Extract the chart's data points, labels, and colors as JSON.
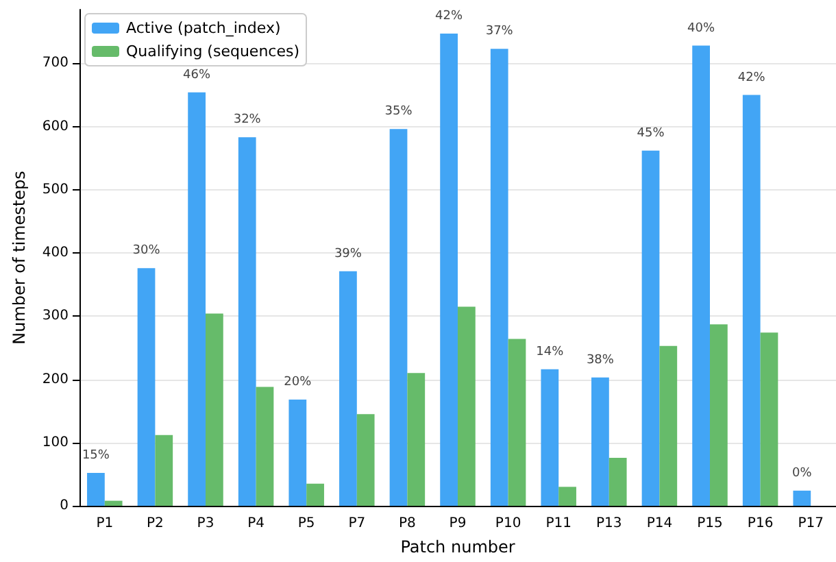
{
  "chart_data": {
    "type": "bar",
    "xlabel": "Patch number",
    "ylabel": "Number of timesteps",
    "categories": [
      "P1",
      "P2",
      "P3",
      "P4",
      "P5",
      "P7",
      "P8",
      "P9",
      "P10",
      "P11",
      "P13",
      "P14",
      "P15",
      "P16",
      "P17"
    ],
    "series": [
      {
        "name": "Active (patch_index)",
        "color": "#42a5f5",
        "values": [
          52,
          376,
          654,
          583,
          168,
          371,
          596,
          747,
          723,
          216,
          203,
          562,
          728,
          650,
          24
        ]
      },
      {
        "name": "Qualifying (sequences)",
        "color": "#66bb6a",
        "values": [
          8,
          112,
          304,
          188,
          35,
          145,
          210,
          315,
          264,
          30,
          76,
          253,
          287,
          274,
          0
        ]
      }
    ],
    "annotations": [
      {
        "text": "15%",
        "x": "P1",
        "y": 52
      },
      {
        "text": "30%",
        "x": "P2",
        "y": 376
      },
      {
        "text": "46%",
        "x": "P3",
        "y": 654
      },
      {
        "text": "32%",
        "x": "P4",
        "y": 583
      },
      {
        "text": "20%",
        "x": "P5",
        "y": 168
      },
      {
        "text": "39%",
        "x": "P7",
        "y": 371
      },
      {
        "text": "35%",
        "x": "P8",
        "y": 596
      },
      {
        "text": "42%",
        "x": "P9",
        "y": 747
      },
      {
        "text": "37%",
        "x": "P10",
        "y": 723
      },
      {
        "text": "14%",
        "x": "P11",
        "y": 216
      },
      {
        "text": "38%",
        "x": "P13",
        "y": 203
      },
      {
        "text": "45%",
        "x": "P14",
        "y": 562
      },
      {
        "text": "40%",
        "x": "P15",
        "y": 728
      },
      {
        "text": "42%",
        "x": "P16",
        "y": 650
      },
      {
        "text": "0%",
        "x": "P17",
        "y": 24
      }
    ],
    "ylim": [
      0,
      785
    ],
    "yticks": [
      0,
      100,
      200,
      300,
      400,
      500,
      600,
      700
    ],
    "grid": "y",
    "legend": "top left"
  }
}
